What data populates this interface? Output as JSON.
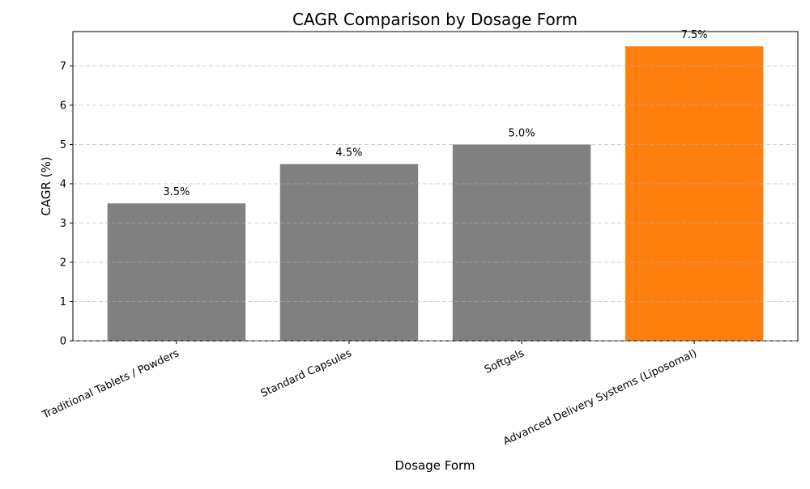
{
  "chart_data": {
    "type": "bar",
    "title": "CAGR Comparison by Dosage Form",
    "xlabel": "Dosage Form",
    "ylabel": "CAGR (%)",
    "categories": [
      "Traditional Tablets / Powders",
      "Standard Capsules",
      "Softgels",
      "Advanced Delivery Systems (Liposomal)"
    ],
    "values": [
      3.5,
      4.5,
      5.0,
      7.5
    ],
    "data_labels": [
      "3.5%",
      "4.5%",
      "5.0%",
      "7.5%"
    ],
    "colors": [
      "#808080",
      "#808080",
      "#808080",
      "#ff7f0e"
    ],
    "ylim": [
      0,
      7.875
    ],
    "yticks": [
      0,
      1,
      2,
      3,
      4,
      5,
      6,
      7
    ],
    "grid": "y-dashed",
    "legend": "none"
  }
}
